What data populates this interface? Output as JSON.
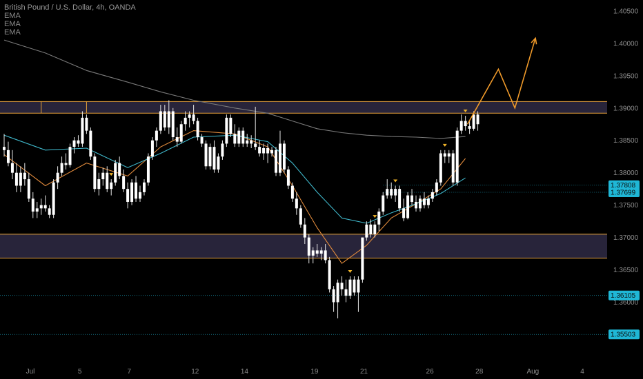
{
  "header": {
    "title": "British Pound / U.S. Dollar, 4h, OANDA",
    "indicators": [
      "EMA",
      "EMA",
      "EMA"
    ]
  },
  "colors": {
    "background": "#000000",
    "candle_up": "#ffffff",
    "candle_down": "#ffffff",
    "ema_fast": "#e08a3c",
    "ema_mid": "#3fb6c9",
    "ema_slow": "#7a7a7a",
    "zone_fill": "#2c2840",
    "zone_border": "#e8a33a",
    "arrow": "#f09a2a",
    "marker": "#f0b429",
    "badge": "#1fb7d6"
  },
  "chart_data": {
    "type": "candlestick",
    "title": "British Pound / U.S. Dollar, 4h, OANDA",
    "x_tick_labels": [
      "Jul",
      "5",
      "7",
      "12",
      "14",
      "19",
      "21",
      "26",
      "28",
      "Aug",
      "4"
    ],
    "x_tick_index": [
      0,
      12,
      24,
      40,
      52,
      69,
      81,
      97,
      109,
      122,
      134
    ],
    "y_tick_labels": [
      "1.40500",
      "1.40000",
      "1.39500",
      "1.39000",
      "1.38500",
      "1.38000",
      "1.37500",
      "1.37000",
      "1.36500",
      "1.36000"
    ],
    "ylim": [
      1.3525,
      1.4052
    ],
    "grid": false,
    "candles_ohlc": [
      [
        1.384,
        1.386,
        1.3825,
        1.3835
      ],
      [
        1.3835,
        1.3848,
        1.381,
        1.3815
      ],
      [
        1.3815,
        1.3835,
        1.379,
        1.38
      ],
      [
        1.38,
        1.3815,
        1.377,
        1.378
      ],
      [
        1.378,
        1.381,
        1.377,
        1.38
      ],
      [
        1.38,
        1.3815,
        1.378,
        1.379
      ],
      [
        1.379,
        1.38,
        1.3755,
        1.376
      ],
      [
        1.376,
        1.377,
        1.373,
        1.374
      ],
      [
        1.374,
        1.3755,
        1.373,
        1.3745
      ],
      [
        1.3745,
        1.376,
        1.3735,
        1.375
      ],
      [
        1.375,
        1.3765,
        1.374,
        1.3745
      ],
      [
        1.3745,
        1.375,
        1.373,
        1.3735
      ],
      [
        1.3735,
        1.379,
        1.373,
        1.3785
      ],
      [
        1.3785,
        1.381,
        1.3775,
        1.38
      ],
      [
        1.38,
        1.3825,
        1.3795,
        1.3815
      ],
      [
        1.3815,
        1.383,
        1.3805,
        1.3812
      ],
      [
        1.3812,
        1.3845,
        1.3808,
        1.384
      ],
      [
        1.384,
        1.3855,
        1.383,
        1.385
      ],
      [
        1.385,
        1.3858,
        1.384,
        1.3845
      ],
      [
        1.3845,
        1.3895,
        1.384,
        1.3885
      ],
      [
        1.3885,
        1.389,
        1.386,
        1.3865
      ],
      [
        1.3865,
        1.387,
        1.382,
        1.3825
      ],
      [
        1.3825,
        1.383,
        1.377,
        1.3775
      ],
      [
        1.3775,
        1.38,
        1.3765,
        1.379
      ],
      [
        1.379,
        1.3808,
        1.378,
        1.38
      ],
      [
        1.38,
        1.381,
        1.377,
        1.3775
      ],
      [
        1.3775,
        1.379,
        1.3765,
        1.3785
      ],
      [
        1.3785,
        1.382,
        1.378,
        1.3815
      ],
      [
        1.3815,
        1.3825,
        1.379,
        1.3795
      ],
      [
        1.3795,
        1.3805,
        1.377,
        1.3775
      ],
      [
        1.3775,
        1.3785,
        1.3745,
        1.3755
      ],
      [
        1.3755,
        1.379,
        1.375,
        1.3785
      ],
      [
        1.3785,
        1.3795,
        1.3755,
        1.376
      ],
      [
        1.376,
        1.378,
        1.3755,
        1.377
      ],
      [
        1.377,
        1.379,
        1.3765,
        1.3785
      ],
      [
        1.3785,
        1.383,
        1.378,
        1.3825
      ],
      [
        1.3825,
        1.3855,
        1.382,
        1.385
      ],
      [
        1.385,
        1.387,
        1.384,
        1.3865
      ],
      [
        1.3865,
        1.3905,
        1.386,
        1.3895
      ],
      [
        1.3895,
        1.3905,
        1.3865,
        1.387
      ],
      [
        1.387,
        1.3912,
        1.386,
        1.3895
      ],
      [
        1.3895,
        1.39,
        1.385,
        1.3855
      ],
      [
        1.3855,
        1.387,
        1.384,
        1.3848
      ],
      [
        1.3848,
        1.388,
        1.3845,
        1.3875
      ],
      [
        1.3875,
        1.3895,
        1.3865,
        1.3885
      ],
      [
        1.3885,
        1.3895,
        1.387,
        1.389
      ],
      [
        1.389,
        1.3905,
        1.3875,
        1.388
      ],
      [
        1.388,
        1.3885,
        1.385,
        1.3855
      ],
      [
        1.3855,
        1.386,
        1.384,
        1.3845
      ],
      [
        1.3845,
        1.385,
        1.3805,
        1.381
      ],
      [
        1.381,
        1.3845,
        1.3805,
        1.384
      ],
      [
        1.384,
        1.385,
        1.38,
        1.3805
      ],
      [
        1.3805,
        1.383,
        1.38,
        1.3825
      ],
      [
        1.3825,
        1.385,
        1.382,
        1.3845
      ],
      [
        1.3845,
        1.389,
        1.384,
        1.3885
      ],
      [
        1.3885,
        1.389,
        1.3855,
        1.386
      ],
      [
        1.386,
        1.3875,
        1.384,
        1.3845
      ],
      [
        1.3845,
        1.387,
        1.384,
        1.3865
      ],
      [
        1.3865,
        1.387,
        1.384,
        1.3845
      ],
      [
        1.3845,
        1.386,
        1.384,
        1.385
      ],
      [
        1.385,
        1.3858,
        1.3838,
        1.3845
      ],
      [
        1.3845,
        1.3902,
        1.3835,
        1.384
      ],
      [
        1.384,
        1.385,
        1.3825,
        1.383
      ],
      [
        1.383,
        1.3845,
        1.382,
        1.3838
      ],
      [
        1.3838,
        1.3845,
        1.3815,
        1.383
      ],
      [
        1.383,
        1.384,
        1.3825,
        1.3835
      ],
      [
        1.3835,
        1.384,
        1.3795,
        1.38
      ],
      [
        1.38,
        1.3865,
        1.3795,
        1.3845
      ],
      [
        1.3845,
        1.385,
        1.38,
        1.3805
      ],
      [
        1.3805,
        1.381,
        1.3775,
        1.378
      ],
      [
        1.378,
        1.3785,
        1.3755,
        1.376
      ],
      [
        1.376,
        1.377,
        1.3735,
        1.3745
      ],
      [
        1.3745,
        1.375,
        1.3715,
        1.372
      ],
      [
        1.372,
        1.373,
        1.369,
        1.37
      ],
      [
        1.37,
        1.3705,
        1.366,
        1.3672
      ],
      [
        1.3672,
        1.3685,
        1.366,
        1.368
      ],
      [
        1.368,
        1.369,
        1.367,
        1.3675
      ],
      [
        1.3675,
        1.3685,
        1.3665,
        1.368
      ],
      [
        1.368,
        1.369,
        1.366,
        1.3665
      ],
      [
        1.3665,
        1.367,
        1.3615,
        1.362
      ],
      [
        1.362,
        1.3625,
        1.3585,
        1.36
      ],
      [
        1.36,
        1.3635,
        1.3575,
        1.363
      ],
      [
        1.363,
        1.364,
        1.361,
        1.362
      ],
      [
        1.362,
        1.3635,
        1.36,
        1.361
      ],
      [
        1.361,
        1.364,
        1.3605,
        1.3635
      ],
      [
        1.3635,
        1.364,
        1.361,
        1.3615
      ],
      [
        1.3615,
        1.364,
        1.3585,
        1.3635
      ],
      [
        1.3635,
        1.37,
        1.363,
        1.37
      ],
      [
        1.37,
        1.3725,
        1.3695,
        1.372
      ],
      [
        1.372,
        1.3728,
        1.37,
        1.3705
      ],
      [
        1.3705,
        1.3725,
        1.37,
        1.372
      ],
      [
        1.372,
        1.3745,
        1.371,
        1.374
      ],
      [
        1.374,
        1.377,
        1.3735,
        1.3765
      ],
      [
        1.3765,
        1.379,
        1.376,
        1.3775
      ],
      [
        1.3775,
        1.3785,
        1.376,
        1.3765
      ],
      [
        1.3765,
        1.378,
        1.3755,
        1.3775
      ],
      [
        1.3775,
        1.378,
        1.374,
        1.3745
      ],
      [
        1.3745,
        1.376,
        1.3725,
        1.373
      ],
      [
        1.373,
        1.377,
        1.3728,
        1.3765
      ],
      [
        1.3765,
        1.3775,
        1.375,
        1.3755
      ],
      [
        1.3755,
        1.3765,
        1.374,
        1.3745
      ],
      [
        1.3745,
        1.3765,
        1.374,
        1.376
      ],
      [
        1.376,
        1.377,
        1.3745,
        1.375
      ],
      [
        1.375,
        1.3765,
        1.3745,
        1.376
      ],
      [
        1.376,
        1.3775,
        1.3755,
        1.377
      ],
      [
        1.377,
        1.379,
        1.3765,
        1.3785
      ],
      [
        1.3785,
        1.3835,
        1.378,
        1.383
      ],
      [
        1.383,
        1.3835,
        1.3815,
        1.3825
      ],
      [
        1.3825,
        1.3835,
        1.3815,
        1.383
      ],
      [
        1.383,
        1.3835,
        1.378,
        1.3785
      ],
      [
        1.3785,
        1.387,
        1.378,
        1.3865
      ],
      [
        1.3865,
        1.389,
        1.386,
        1.388
      ],
      [
        1.388,
        1.3888,
        1.3865,
        1.3872
      ],
      [
        1.3872,
        1.388,
        1.386,
        1.3868
      ],
      [
        1.3868,
        1.3895,
        1.3865,
        1.389
      ],
      [
        1.389,
        1.3895,
        1.3865,
        1.3875
      ]
    ],
    "ema_series": [
      {
        "color_key": "ema_fast",
        "points": [
          [
            0,
            1.3828
          ],
          [
            10,
            1.378
          ],
          [
            20,
            1.3815
          ],
          [
            30,
            1.3795
          ],
          [
            38,
            1.384
          ],
          [
            46,
            1.3865
          ],
          [
            56,
            1.386
          ],
          [
            64,
            1.384
          ],
          [
            70,
            1.378
          ],
          [
            76,
            1.3715
          ],
          [
            82,
            1.366
          ],
          [
            88,
            1.3688
          ],
          [
            94,
            1.373
          ],
          [
            100,
            1.3752
          ],
          [
            106,
            1.3775
          ],
          [
            112,
            1.3822
          ]
        ]
      },
      {
        "color_key": "ema_mid",
        "points": [
          [
            0,
            1.3858
          ],
          [
            10,
            1.3835
          ],
          [
            20,
            1.3838
          ],
          [
            30,
            1.3808
          ],
          [
            38,
            1.383
          ],
          [
            46,
            1.3855
          ],
          [
            56,
            1.3858
          ],
          [
            64,
            1.3848
          ],
          [
            70,
            1.3815
          ],
          [
            76,
            1.377
          ],
          [
            82,
            1.373
          ],
          [
            88,
            1.3722
          ],
          [
            94,
            1.3738
          ],
          [
            100,
            1.3752
          ],
          [
            106,
            1.3768
          ],
          [
            112,
            1.3792
          ]
        ]
      },
      {
        "color_key": "ema_slow",
        "points": [
          [
            0,
            1.4005
          ],
          [
            10,
            1.3985
          ],
          [
            20,
            1.3958
          ],
          [
            30,
            1.394
          ],
          [
            38,
            1.3925
          ],
          [
            46,
            1.3912
          ],
          [
            56,
            1.39
          ],
          [
            64,
            1.3892
          ],
          [
            70,
            1.388
          ],
          [
            76,
            1.3868
          ],
          [
            82,
            1.3862
          ],
          [
            88,
            1.3858
          ],
          [
            94,
            1.3856
          ],
          [
            100,
            1.3855
          ],
          [
            106,
            1.3853
          ],
          [
            112,
            1.3856
          ]
        ]
      }
    ],
    "zones": [
      {
        "top": 1.391,
        "bottom": 1.3892
      },
      {
        "top": 1.3705,
        "bottom": 1.3668
      }
    ],
    "dotted_levels": [
      1.37808,
      1.37699,
      1.36105,
      1.35503
    ],
    "level_badges": [
      "1.37808",
      "1.37699",
      "1.36105",
      "1.35503"
    ],
    "markers_index": [
      26,
      84,
      90,
      95,
      107,
      112
    ],
    "projection_path": [
      [
        112.5,
        1.3875
      ],
      [
        120,
        1.396
      ],
      [
        124,
        1.39
      ],
      [
        129,
        1.4008
      ]
    ]
  }
}
